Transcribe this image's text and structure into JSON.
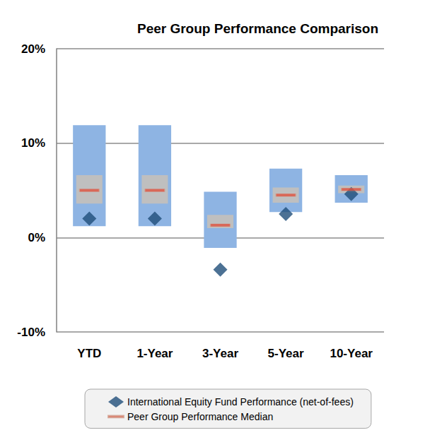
{
  "chart_data": {
    "type": "box",
    "title": "Peer Group Performance Comparison",
    "categories": [
      "YTD",
      "1-Year",
      "3-Year",
      "5-Year",
      "10-Year"
    ],
    "ylim": [
      -10,
      20
    ],
    "yticks": [
      {
        "value": -10,
        "label": "-10%"
      },
      {
        "value": 0,
        "label": "0%"
      },
      {
        "value": 10,
        "label": "10%"
      },
      {
        "value": 20,
        "label": "20%"
      }
    ],
    "grid": true,
    "legend": "bottom",
    "ranges": {
      "outer": {
        "color": "#8eb4e3",
        "low": [
          1.2,
          1.2,
          -1.1,
          2.7,
          3.7
        ],
        "high": [
          11.9,
          11.9,
          4.85,
          7.3,
          6.6
        ]
      },
      "inner": {
        "color": "#bfbfbf",
        "low": [
          3.6,
          3.6,
          1.0,
          3.7,
          4.7
        ],
        "high": [
          6.6,
          6.6,
          2.4,
          5.3,
          5.5
        ]
      }
    },
    "series": [
      {
        "name": "International Equity Fund Performance (net-of-fees)",
        "type": "scatter",
        "marker": "diamond",
        "color": "#1f4e79",
        "values": [
          2.0,
          2.0,
          -3.4,
          2.5,
          4.6
        ]
      },
      {
        "name": "Peer Group Performance Median",
        "type": "median",
        "marker": "dash",
        "color": "#e0533f",
        "values": [
          5.0,
          5.0,
          1.3,
          4.5,
          5.1
        ]
      }
    ]
  }
}
